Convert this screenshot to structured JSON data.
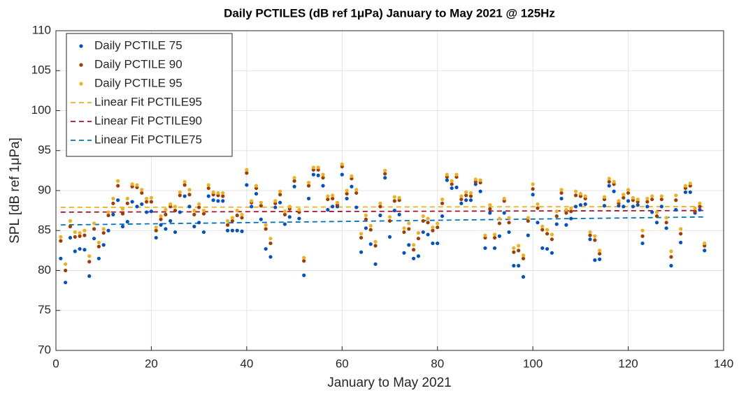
{
  "chart_data": {
    "type": "scatter",
    "title": "Daily PCTILES (dB ref 1μPa) January to May 2021 @ 125Hz",
    "x_label": "January to May 2021",
    "y_label": "SPL [dB ref 1μPa]",
    "xlim": [
      0,
      140
    ],
    "ylim": [
      70,
      110
    ],
    "xticks": [
      0,
      20,
      40,
      60,
      80,
      100,
      120,
      140
    ],
    "yticks": [
      70,
      75,
      80,
      85,
      90,
      95,
      100,
      105,
      110
    ],
    "grid": true,
    "legend": "upper left",
    "x": [
      1,
      2,
      3,
      4,
      5,
      6,
      7,
      8,
      9,
      10,
      11,
      12,
      13,
      14,
      15,
      16,
      17,
      18,
      19,
      20,
      21,
      22,
      23,
      24,
      25,
      26,
      27,
      28,
      29,
      30,
      31,
      32,
      33,
      34,
      35,
      36,
      37,
      38,
      39,
      40,
      41,
      42,
      43,
      44,
      45,
      46,
      47,
      48,
      49,
      50,
      51,
      52,
      53,
      54,
      55,
      56,
      57,
      58,
      59,
      60,
      61,
      62,
      63,
      64,
      65,
      66,
      67,
      68,
      69,
      70,
      71,
      72,
      73,
      74,
      75,
      76,
      77,
      78,
      79,
      80,
      81,
      82,
      83,
      84,
      85,
      86,
      87,
      88,
      89,
      90,
      91,
      92,
      93,
      94,
      95,
      96,
      97,
      98,
      99,
      100,
      101,
      102,
      103,
      104,
      105,
      106,
      107,
      108,
      109,
      110,
      111,
      112,
      113,
      114,
      115,
      116,
      117,
      118,
      119,
      120,
      121,
      122,
      123,
      124,
      125,
      126,
      127,
      128,
      129,
      130,
      131,
      132,
      133,
      134,
      135,
      136
    ],
    "series": [
      {
        "name": "Daily PCTILE 75",
        "type": "scatter",
        "color": "#0050c8",
        "values": [
          81.5,
          78.5,
          84.1,
          82.4,
          82.7,
          82.6,
          79.3,
          84.0,
          81.5,
          83.2,
          85.0,
          87.0,
          88.8,
          85.5,
          86.1,
          88.6,
          88.0,
          88.3,
          87.3,
          87.4,
          84.1,
          85.7,
          85.2,
          86.2,
          84.8,
          87.3,
          89.3,
          88.0,
          85.5,
          86.0,
          84.8,
          89.3,
          88.8,
          88.7,
          88.7,
          85.0,
          85.0,
          85.0,
          84.9,
          90.7,
          88.0,
          89.6,
          86.4,
          82.7,
          81.7,
          87.9,
          88.5,
          85.8,
          86.7,
          90.5,
          86.5,
          79.4,
          89.0,
          92.0,
          91.9,
          90.6,
          87.6,
          88.0,
          88.0,
          92.0,
          89.0,
          90.5,
          87.9,
          82.3,
          85.3,
          83.3,
          80.8,
          86.9,
          91.6,
          84.2,
          87.5,
          87.0,
          82.2,
          83.2,
          81.5,
          81.8,
          84.8,
          84.5,
          83.4,
          83.4,
          86.8,
          91.3,
          90.3,
          90.4,
          88.4,
          88.8,
          88.8,
          90.8,
          89.9,
          82.8,
          87.2,
          82.8,
          84.3,
          87.2,
          84.8,
          80.6,
          80.6,
          79.2,
          84.4,
          89.5,
          86.0,
          82.8,
          82.7,
          82.2,
          85.8,
          89.0,
          85.7,
          86.5,
          88.0,
          88.2,
          88.3,
          83.9,
          81.3,
          81.4,
          88.1,
          90.6,
          89.9,
          88.1,
          88.0,
          88.7,
          88.0,
          88.2,
          83.4,
          88.0,
          87.3,
          86.0,
          88.0,
          85.3,
          80.6,
          87.6,
          83.5,
          89.8,
          89.8,
          87.2,
          87.6,
          82.5
        ]
      },
      {
        "name": "Daily PCTILE 90",
        "type": "scatter",
        "color": "#a23c00",
        "values": [
          83.7,
          80.0,
          85.5,
          84.2,
          84.3,
          84.4,
          81.1,
          85.2,
          83.0,
          84.7,
          86.9,
          88.4,
          90.6,
          87.1,
          88.4,
          90.5,
          90.4,
          89.7,
          88.6,
          88.6,
          85.0,
          86.4,
          87.0,
          88.0,
          87.5,
          89.4,
          90.7,
          89.5,
          87.0,
          87.9,
          87.1,
          90.3,
          89.5,
          89.4,
          89.3,
          85.7,
          86.2,
          86.9,
          86.6,
          92.2,
          88.5,
          90.3,
          88.1,
          85.2,
          83.4,
          88.4,
          89.5,
          87.0,
          87.7,
          91.2,
          87.3,
          81.2,
          90.6,
          92.6,
          92.6,
          91.6,
          88.9,
          89.0,
          88.2,
          93.0,
          89.6,
          91.5,
          89.7,
          84.1,
          86.4,
          85.1,
          83.1,
          88.0,
          92.1,
          86.2,
          88.7,
          88.8,
          84.8,
          85.2,
          82.6,
          84.0,
          86.2,
          86.0,
          85.0,
          85.4,
          88.4,
          91.7,
          90.8,
          91.7,
          88.9,
          89.4,
          89.3,
          91.1,
          91.0,
          84.1,
          87.7,
          84.1,
          85.9,
          88.7,
          86.0,
          82.3,
          82.5,
          81.5,
          86.2,
          90.2,
          87.8,
          85.1,
          84.6,
          83.9,
          86.8,
          89.7,
          87.2,
          87.4,
          89.4,
          89.3,
          89.0,
          84.4,
          83.8,
          82.1,
          88.9,
          91.1,
          90.8,
          88.4,
          89.1,
          89.7,
          88.8,
          88.6,
          84.3,
          88.6,
          88.9,
          86.8,
          88.9,
          86.0,
          81.7,
          88.8,
          84.6,
          90.3,
          90.6,
          87.4,
          88.0,
          83.1
        ]
      },
      {
        "name": "Daily PCTILE 95",
        "type": "scatter",
        "color": "#f0b020",
        "values": [
          84.2,
          80.8,
          86.2,
          84.8,
          84.7,
          85.0,
          81.8,
          85.9,
          83.5,
          85.2,
          87.3,
          89.0,
          91.2,
          87.7,
          89.0,
          90.8,
          90.7,
          90.1,
          89.0,
          89.1,
          85.4,
          86.8,
          87.6,
          88.3,
          88.0,
          89.8,
          91.1,
          90.1,
          87.5,
          88.3,
          87.5,
          90.7,
          89.8,
          89.7,
          89.7,
          86.2,
          86.6,
          87.5,
          87.0,
          92.6,
          88.7,
          90.6,
          88.5,
          85.7,
          84.0,
          88.7,
          89.9,
          87.4,
          88.0,
          91.6,
          87.6,
          81.6,
          91.0,
          92.9,
          92.9,
          92.0,
          89.3,
          89.4,
          88.5,
          93.3,
          90.0,
          91.8,
          90.1,
          84.6,
          86.9,
          85.6,
          83.6,
          88.4,
          92.5,
          86.7,
          89.2,
          89.1,
          85.3,
          85.9,
          83.2,
          84.7,
          86.8,
          86.5,
          85.4,
          85.9,
          88.9,
          92.0,
          91.2,
          92.0,
          89.3,
          89.8,
          89.7,
          91.4,
          91.3,
          84.4,
          88.2,
          84.5,
          86.5,
          89.0,
          86.6,
          82.8,
          83.1,
          81.9,
          86.6,
          90.8,
          88.3,
          85.5,
          85.1,
          84.5,
          87.4,
          90.1,
          87.6,
          87.8,
          89.9,
          89.6,
          89.3,
          84.8,
          84.3,
          82.5,
          89.2,
          91.5,
          91.1,
          88.7,
          89.5,
          90.1,
          89.1,
          88.9,
          85.0,
          89.0,
          89.3,
          87.3,
          89.3,
          86.6,
          82.4,
          89.4,
          85.2,
          90.6,
          90.9,
          87.8,
          88.4,
          83.4
        ]
      },
      {
        "name": "Linear Fit PCTILE95",
        "type": "line",
        "style": "dashed",
        "color": "#edb120",
        "x": [
          1,
          136
        ],
        "values": [
          87.9,
          88.0
        ]
      },
      {
        "name": "Linear Fit PCTILE90",
        "type": "line",
        "style": "dashed",
        "color": "#a2142f",
        "x": [
          1,
          136
        ],
        "values": [
          87.3,
          87.5
        ]
      },
      {
        "name": "Linear Fit PCTILE75",
        "type": "line",
        "style": "dashed",
        "color": "#0072bd",
        "x": [
          1,
          136
        ],
        "values": [
          85.7,
          86.7
        ]
      }
    ]
  }
}
